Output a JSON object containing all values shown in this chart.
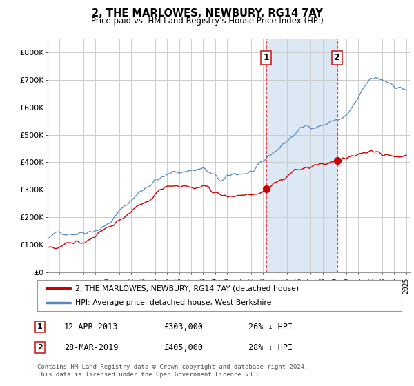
{
  "title": "2, THE MARLOWES, NEWBURY, RG14 7AY",
  "subtitle": "Price paid vs. HM Land Registry's House Price Index (HPI)",
  "background_color": "#ffffff",
  "plot_bg_color": "#ffffff",
  "grid_color": "#cccccc",
  "ylim": [
    0,
    850000
  ],
  "yticks": [
    0,
    100000,
    200000,
    300000,
    400000,
    500000,
    600000,
    700000,
    800000
  ],
  "ytick_labels": [
    "£0",
    "£100K",
    "£200K",
    "£300K",
    "£400K",
    "£500K",
    "£600K",
    "£700K",
    "£800K"
  ],
  "legend_entries": [
    "2, THE MARLOWES, NEWBURY, RG14 7AY (detached house)",
    "HPI: Average price, detached house, West Berkshire"
  ],
  "legend_colors": [
    "#cc0000",
    "#5588bb"
  ],
  "marker1_year": 2013.28,
  "marker1_price": 303000,
  "marker1_label": "1",
  "marker1_date": "12-APR-2013",
  "marker1_pct": "26% ↓ HPI",
  "marker2_year": 2019.22,
  "marker2_price": 405000,
  "marker2_label": "2",
  "marker2_date": "28-MAR-2019",
  "marker2_pct": "28% ↓ HPI",
  "note": "Contains HM Land Registry data © Crown copyright and database right 2024.\nThis data is licensed under the Open Government Licence v3.0.",
  "shade_color": "#dce9f5"
}
